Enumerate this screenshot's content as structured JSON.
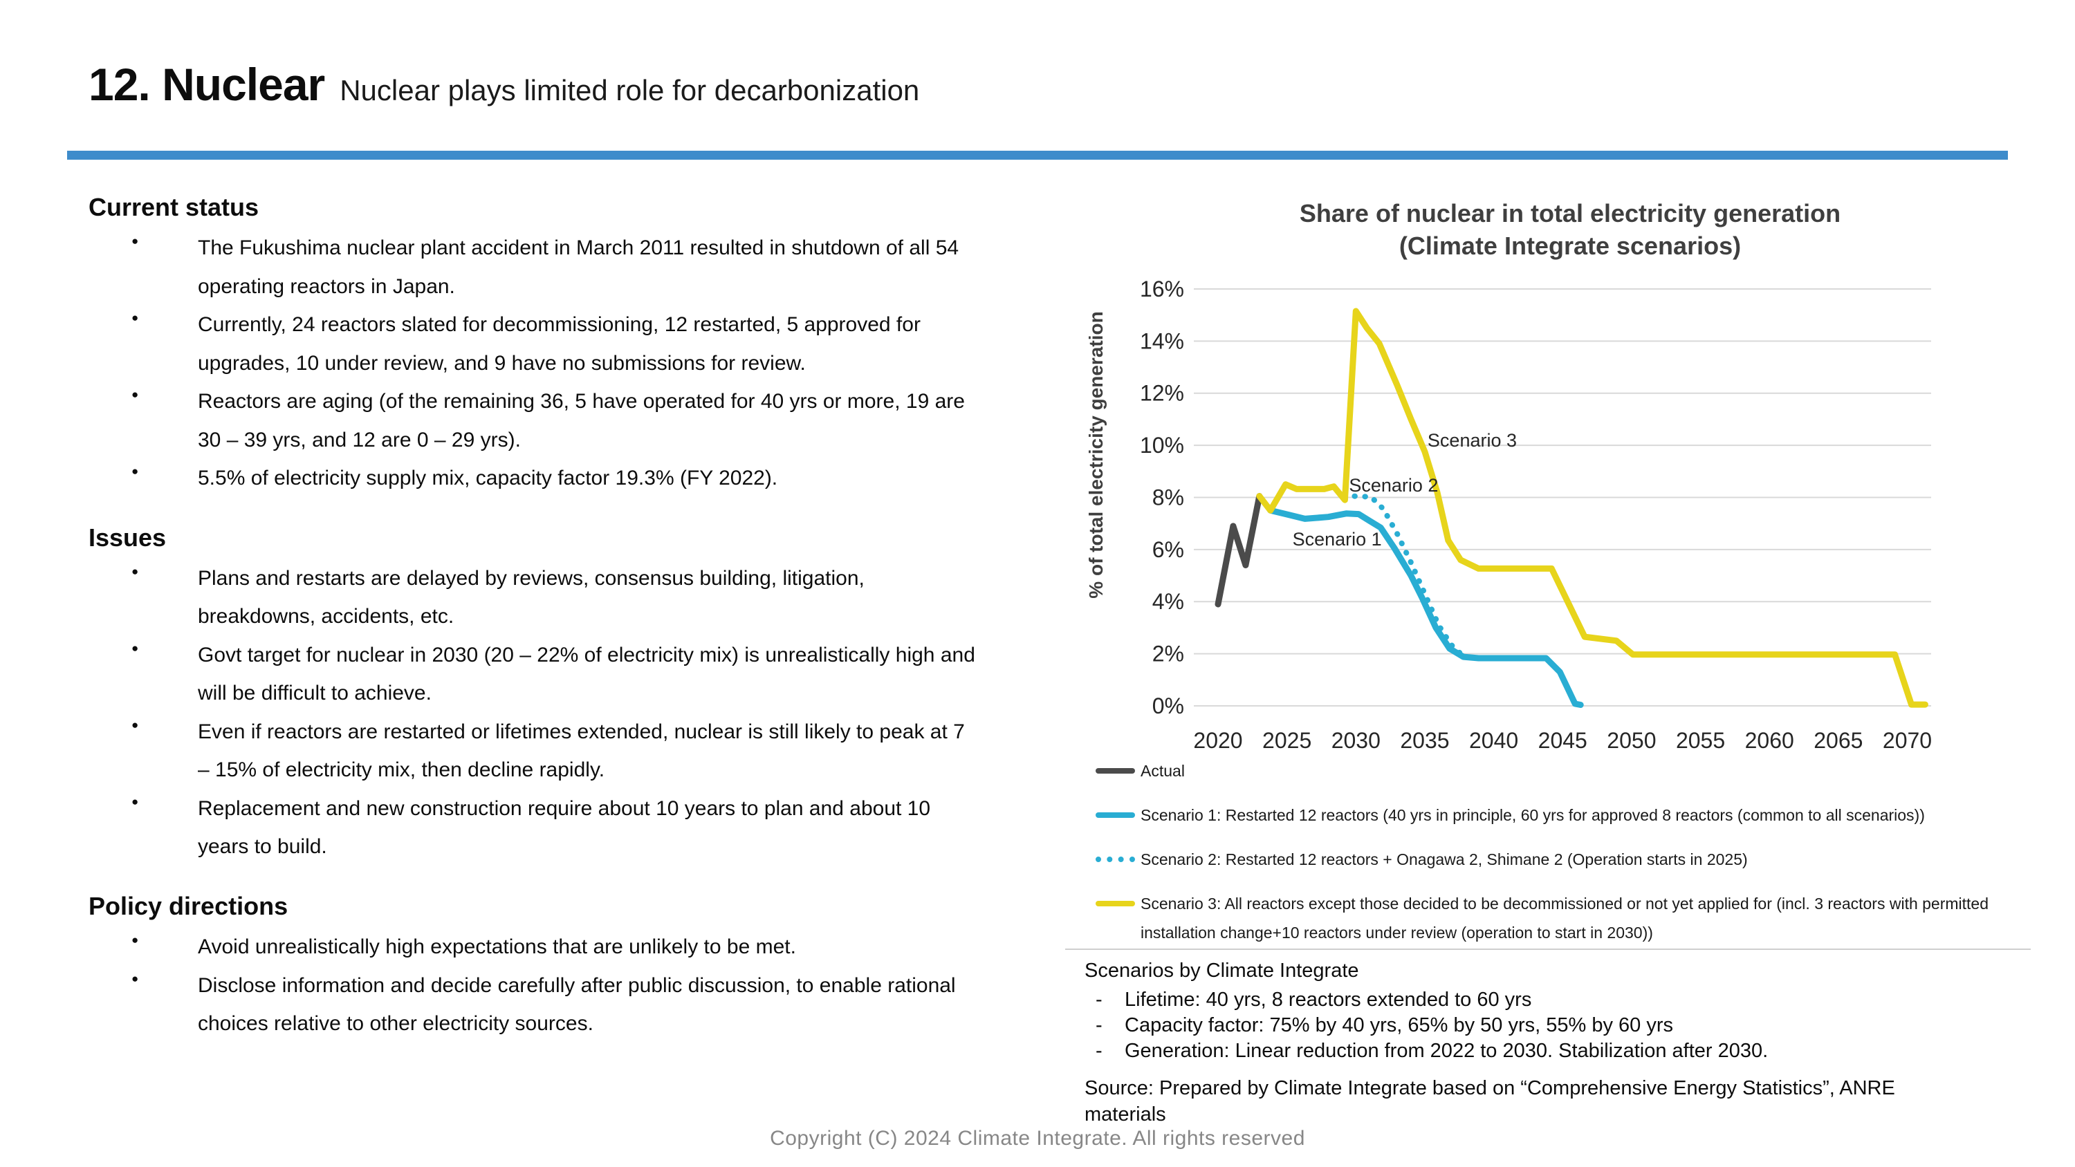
{
  "page": {
    "title": "12. Nuclear",
    "subtitle": "Nuclear plays limited role for decarbonization",
    "accent_color": "#3E8CCB",
    "footer": "Copyright (C) 2024 Climate Integrate. All rights reserved"
  },
  "sections": [
    {
      "heading": "Current status",
      "bullets": [
        "The Fukushima nuclear plant accident in March 2011 resulted in shutdown of all 54 operating reactors in Japan.",
        "Currently, 24 reactors slated for decommissioning, 12 restarted, 5 approved for upgrades, 10 under review, and 9 have no submissions for review.",
        "Reactors are aging (of the remaining 36, 5 have operated for 40 yrs or more, 19 are 30 – 39 yrs, and 12 are 0 – 29 yrs).",
        "5.5% of electricity supply mix, capacity factor 19.3% (FY 2022)."
      ]
    },
    {
      "heading": "Issues",
      "bullets": [
        "Plans and restarts are delayed by reviews, consensus building, litigation, breakdowns, accidents, etc.",
        "Govt target for nuclear in 2030 (20 – 22% of electricity mix) is unrealistically high and will be difficult to achieve.",
        "Even if reactors are restarted or lifetimes extended, nuclear is still likely to peak at 7 – 15% of electricity mix, then decline rapidly.",
        "Replacement and new construction require about 10 years to plan and about 10 years to build."
      ]
    },
    {
      "heading": "Policy directions",
      "bullets": [
        "Avoid unrealistically high expectations that are unlikely to be met.",
        "Disclose information and decide carefully after public discussion, to enable rational choices relative to other electricity sources."
      ]
    }
  ],
  "chart_data": {
    "type": "line",
    "title": "Share of nuclear in total electricity generation",
    "subtitle": "(Climate Integrate scenarios)",
    "ylabel": "% of total electricity generation",
    "xlabel": "",
    "xlim": [
      2018.3,
      2071.9
    ],
    "ylim": [
      0,
      16
    ],
    "ytick_step": 2,
    "ytick_suffix": "%",
    "xticks": [
      2020,
      2025,
      2030,
      2035,
      2040,
      2045,
      2050,
      2055,
      2060,
      2065,
      2070
    ],
    "grid": true,
    "legend_position": "bottom",
    "gridline_color": "#d9d9d9",
    "series": [
      {
        "name": "Actual",
        "color": "#4B4B4B",
        "style": "solid",
        "points": [
          [
            2020,
            3.9
          ],
          [
            2021.1,
            6.9
          ],
          [
            2022,
            5.4
          ],
          [
            2023,
            8.05
          ]
        ]
      },
      {
        "name": "Scenario 1: Restarted 12 reactors (40 yrs in principle, 60 yrs for approved 8 reactors (common to all scenarios))",
        "color": "#29ADD3",
        "style": "solid",
        "points": [
          [
            2023.8,
            7.5
          ],
          [
            2025,
            7.35
          ],
          [
            2026.3,
            7.18
          ],
          [
            2028,
            7.25
          ],
          [
            2029.3,
            7.38
          ],
          [
            2030.2,
            7.36
          ],
          [
            2031,
            7.1
          ],
          [
            2031.8,
            6.84
          ],
          [
            2032.8,
            6.05
          ],
          [
            2034,
            5.0
          ],
          [
            2034.8,
            4.15
          ],
          [
            2035.8,
            3.0
          ],
          [
            2036.8,
            2.2
          ],
          [
            2037.8,
            1.88
          ],
          [
            2038.9,
            1.83
          ],
          [
            2043.8,
            1.83
          ],
          [
            2044.8,
            1.3
          ],
          [
            2045.9,
            0.08
          ],
          [
            2046.3,
            0.04
          ]
        ]
      },
      {
        "name": "Scenario 2: Restarted 12 reactors + Onagawa 2, Shimane 2 (Operation starts in 2025)",
        "color": "#29ADD3",
        "style": "dotted",
        "points": [
          [
            2029.2,
            7.92
          ],
          [
            2029.8,
            8.05
          ],
          [
            2031.1,
            8.02
          ],
          [
            2032,
            7.55
          ],
          [
            2033,
            6.6
          ],
          [
            2034,
            5.5
          ],
          [
            2035,
            4.3
          ],
          [
            2036,
            3.1
          ],
          [
            2036.9,
            2.35
          ],
          [
            2037.7,
            1.95
          ]
        ]
      },
      {
        "name": "Scenario 3: All reactors except those decided to be decommissioned or not yet applied for (incl. 3 reactors with permitted installation change+10 reactors under review (operation to start in 2030))",
        "color": "#E7D41B",
        "style": "solid",
        "points": [
          [
            2023,
            8.05
          ],
          [
            2023.8,
            7.5
          ],
          [
            2024.9,
            8.5
          ],
          [
            2025.7,
            8.32
          ],
          [
            2027.7,
            8.32
          ],
          [
            2028.4,
            8.42
          ],
          [
            2029.2,
            7.9
          ],
          [
            2030,
            15.15
          ],
          [
            2030.8,
            14.5
          ],
          [
            2031.7,
            13.9
          ],
          [
            2033,
            12.3
          ],
          [
            2034,
            11.0
          ],
          [
            2035,
            9.75
          ],
          [
            2035.9,
            8.2
          ],
          [
            2036.7,
            6.35
          ],
          [
            2037.6,
            5.6
          ],
          [
            2038.9,
            5.27
          ],
          [
            2044.2,
            5.27
          ],
          [
            2046.6,
            2.65
          ],
          [
            2048.9,
            2.5
          ],
          [
            2050.1,
            1.97
          ],
          [
            2069.1,
            1.97
          ],
          [
            2070.3,
            0.05
          ],
          [
            2071.3,
            0.05
          ]
        ]
      }
    ],
    "annotations": [
      {
        "text": "Scenario 1",
        "x": 2025.4,
        "y": 6.15
      },
      {
        "text": "Scenario 2",
        "x": 2029.5,
        "y": 8.22
      },
      {
        "text": "Scenario 3",
        "x": 2035.2,
        "y": 9.95
      }
    ]
  },
  "notes": {
    "title": "Scenarios by Climate Integrate",
    "items": [
      "Lifetime: 40 yrs, 8 reactors extended to 60 yrs",
      "Capacity factor: 75% by 40 yrs, 65% by 50 yrs, 55% by 60 yrs",
      "Generation: Linear reduction from 2022 to 2030. Stabilization after 2030."
    ],
    "source": "Source: Prepared by Climate Integrate based on “Comprehensive Energy Statistics”, ANRE materials"
  }
}
